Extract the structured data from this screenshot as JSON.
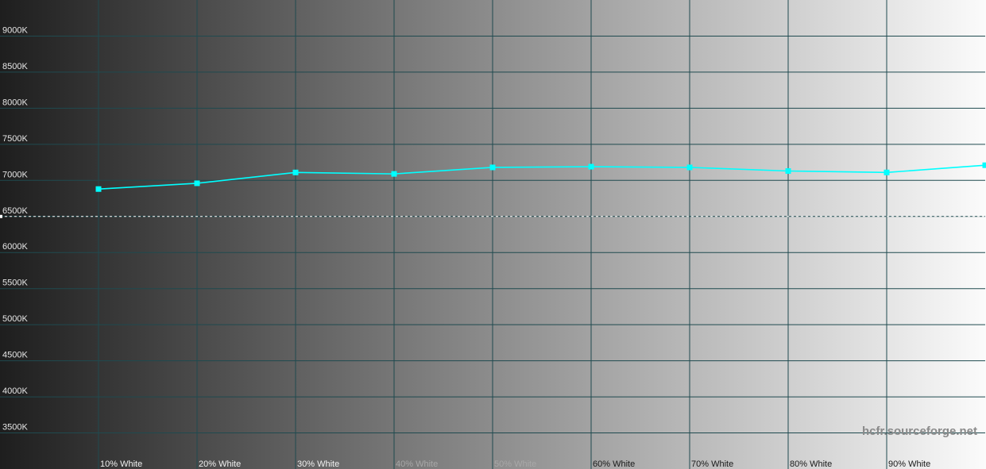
{
  "chart_data": {
    "type": "line",
    "x": [
      10,
      20,
      30,
      40,
      50,
      60,
      70,
      80,
      90,
      100
    ],
    "series": [
      {
        "color": "#00ffff",
        "values": [
          6880,
          6960,
          7110,
          7090,
          7180,
          7190,
          7180,
          7130,
          7110,
          7210
        ]
      }
    ],
    "xlim": [
      0,
      100
    ],
    "xticks": [
      {
        "value": 10,
        "label": "10% White"
      },
      {
        "value": 20,
        "label": "20% White"
      },
      {
        "value": 30,
        "label": "30% White"
      },
      {
        "value": 40,
        "label": "40% White"
      },
      {
        "value": 50,
        "label": "50% White"
      },
      {
        "value": 60,
        "label": "60% White"
      },
      {
        "value": 70,
        "label": "70% White"
      },
      {
        "value": 80,
        "label": "80% White"
      },
      {
        "value": 90,
        "label": "90% White"
      }
    ],
    "ylim": [
      3000,
      9500
    ],
    "yticks": [
      {
        "value": 3500,
        "label": "3500K"
      },
      {
        "value": 4000,
        "label": "4000K"
      },
      {
        "value": 4500,
        "label": "4500K"
      },
      {
        "value": 5000,
        "label": "5000K"
      },
      {
        "value": 5500,
        "label": "5500K"
      },
      {
        "value": 6000,
        "label": "6000K"
      },
      {
        "value": 6500,
        "label": "6500K"
      },
      {
        "value": 7000,
        "label": "7000K"
      },
      {
        "value": 7500,
        "label": "7500K"
      },
      {
        "value": 8000,
        "label": "8000K"
      },
      {
        "value": 8500,
        "label": "8500K"
      },
      {
        "value": 9000,
        "label": "9000K"
      }
    ],
    "reference": 6500,
    "grid": true,
    "watermark": "hcfr.sourceforge.net"
  }
}
